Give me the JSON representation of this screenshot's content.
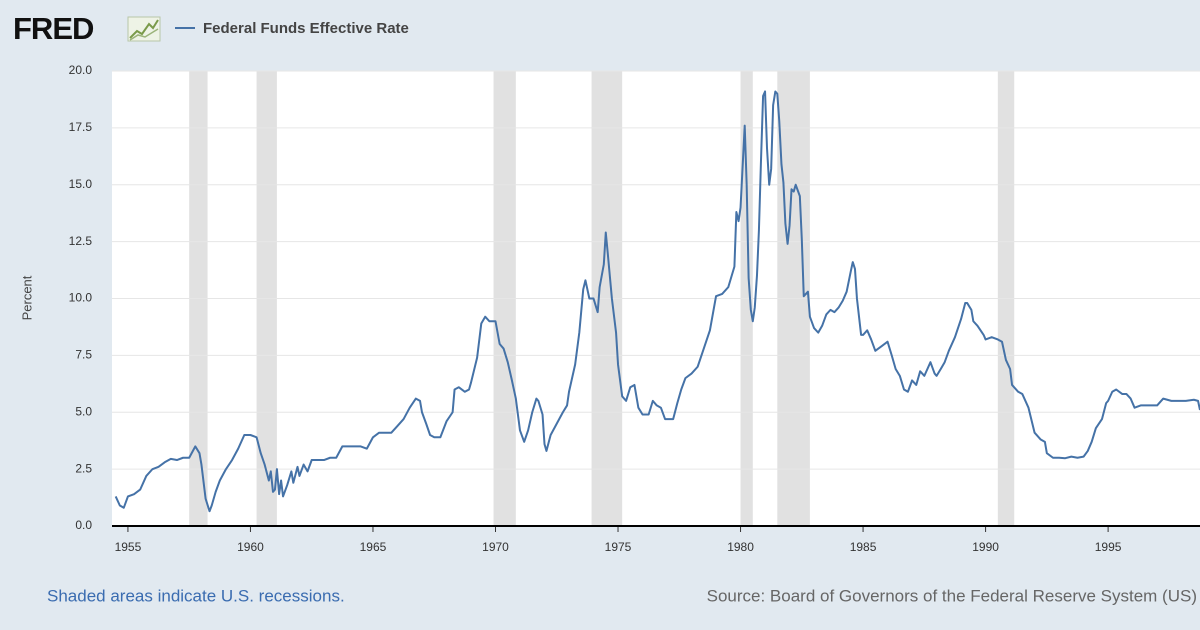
{
  "chart_data": {
    "type": "line",
    "logo": "FRED",
    "ylabel": "Percent",
    "note": "Shaded areas indicate U.S. recessions.",
    "source": "Source: Board of Governors of the Federal Reserve System (US)",
    "xlim": [
      1954.35,
      1998.75
    ],
    "xticks": [
      1955,
      1960,
      1965,
      1970,
      1975,
      1980,
      1985,
      1990,
      1995
    ],
    "ylim": [
      0,
      20
    ],
    "yticks": [
      {
        "value": 0,
        "label": "0.0"
      },
      2.5,
      {
        "value": 5,
        "label": "5.0"
      },
      7.5,
      {
        "value": 10,
        "label": "10.0"
      },
      12.5,
      {
        "value": 15,
        "label": "15.0"
      },
      17.5,
      {
        "value": 20,
        "label": "20.0"
      }
    ],
    "grid": true,
    "recession_color": "#e1e1e1",
    "recessions": [
      [
        1957.5,
        1958.25
      ],
      [
        1960.25,
        1961.08
      ],
      [
        1969.92,
        1970.83
      ],
      [
        1973.92,
        1975.17
      ],
      [
        1980.0,
        1980.5
      ],
      [
        1981.5,
        1982.83
      ],
      [
        1990.5,
        1991.17
      ]
    ],
    "x": [
      1954.5,
      1954.67,
      1954.83,
      1955.0,
      1955.25,
      1955.5,
      1955.75,
      1956.0,
      1956.25,
      1956.5,
      1956.75,
      1957.0,
      1957.25,
      1957.5,
      1957.75,
      1957.92,
      1958.0,
      1958.17,
      1958.33,
      1958.42,
      1958.58,
      1958.75,
      1959.0,
      1959.25,
      1959.5,
      1959.75,
      1960.0,
      1960.25,
      1960.42,
      1960.58,
      1960.75,
      1960.83,
      1960.92,
      1961.0,
      1961.08,
      1961.17,
      1961.25,
      1961.33,
      1961.5,
      1961.67,
      1961.75,
      1961.92,
      1962.0,
      1962.17,
      1962.33,
      1962.5,
      1962.75,
      1963.0,
      1963.25,
      1963.5,
      1963.75,
      1964.0,
      1964.25,
      1964.5,
      1964.75,
      1965.0,
      1965.25,
      1965.5,
      1965.75,
      1966.0,
      1966.25,
      1966.5,
      1966.75,
      1966.92,
      1967.0,
      1967.17,
      1967.33,
      1967.5,
      1967.75,
      1968.0,
      1968.25,
      1968.33,
      1968.5,
      1968.75,
      1968.92,
      1969.0,
      1969.25,
      1969.42,
      1969.58,
      1969.75,
      1970.0,
      1970.17,
      1970.33,
      1970.5,
      1970.67,
      1970.83,
      1971.0,
      1971.17,
      1971.33,
      1971.5,
      1971.67,
      1971.75,
      1971.92,
      1972.0,
      1972.08,
      1972.25,
      1972.5,
      1972.75,
      1972.92,
      1973.0,
      1973.25,
      1973.42,
      1973.58,
      1973.67,
      1973.83,
      1974.0,
      1974.17,
      1974.25,
      1974.42,
      1974.5,
      1974.58,
      1974.75,
      1974.92,
      1975.0,
      1975.17,
      1975.33,
      1975.5,
      1975.67,
      1975.83,
      1976.0,
      1976.25,
      1976.42,
      1976.58,
      1976.75,
      1976.92,
      1977.25,
      1977.42,
      1977.58,
      1977.75,
      1978.0,
      1978.25,
      1978.5,
      1978.75,
      1979.0,
      1979.25,
      1979.5,
      1979.75,
      1979.83,
      1979.92,
      1980.0,
      1980.17,
      1980.25,
      1980.33,
      1980.42,
      1980.5,
      1980.58,
      1980.67,
      1980.75,
      1980.83,
      1980.92,
      1981.0,
      1981.08,
      1981.17,
      1981.25,
      1981.33,
      1981.42,
      1981.5,
      1981.58,
      1981.67,
      1981.75,
      1981.83,
      1981.92,
      1982.0,
      1982.08,
      1982.17,
      1982.25,
      1982.42,
      1982.5,
      1982.58,
      1982.75,
      1982.83,
      1983.0,
      1983.17,
      1983.33,
      1983.5,
      1983.67,
      1983.83,
      1984.0,
      1984.17,
      1984.33,
      1984.5,
      1984.58,
      1984.67,
      1984.75,
      1984.92,
      1985.0,
      1985.17,
      1985.33,
      1985.5,
      1985.75,
      1986.0,
      1986.17,
      1986.33,
      1986.5,
      1986.67,
      1986.83,
      1987.0,
      1987.17,
      1987.33,
      1987.5,
      1987.75,
      1987.92,
      1988.0,
      1988.17,
      1988.33,
      1988.5,
      1988.75,
      1989.0,
      1989.17,
      1989.25,
      1989.42,
      1989.5,
      1989.67,
      1989.92,
      1990.0,
      1990.25,
      1990.5,
      1990.67,
      1990.83,
      1991.0,
      1991.08,
      1991.33,
      1991.5,
      1991.75,
      1992.0,
      1992.25,
      1992.42,
      1992.5,
      1992.75,
      1993.0,
      1993.25,
      1993.5,
      1993.75,
      1994.0,
      1994.17,
      1994.33,
      1994.5,
      1994.75,
      1994.92,
      1995.0,
      1995.17,
      1995.33,
      1995.58,
      1995.75,
      1995.92,
      1996.08,
      1996.33,
      1996.58,
      1996.83,
      1997.0,
      1997.25,
      1997.58,
      1997.92,
      1998.17,
      1998.5,
      1998.67,
      1998.75
    ],
    "series": [
      {
        "name": "Federal Funds Effective Rate",
        "color": "#4572a7",
        "values": [
          1.3,
          0.9,
          0.8,
          1.3,
          1.4,
          1.6,
          2.2,
          2.5,
          2.6,
          2.8,
          2.95,
          2.9,
          3.0,
          3.0,
          3.5,
          3.2,
          2.7,
          1.2,
          0.65,
          0.9,
          1.5,
          2.0,
          2.5,
          2.9,
          3.4,
          4.0,
          4.0,
          3.9,
          3.2,
          2.7,
          2.0,
          2.4,
          1.5,
          1.6,
          2.5,
          1.4,
          2.0,
          1.3,
          1.8,
          2.4,
          1.9,
          2.6,
          2.2,
          2.7,
          2.4,
          2.9,
          2.9,
          2.9,
          3.0,
          3.0,
          3.5,
          3.5,
          3.5,
          3.5,
          3.4,
          3.9,
          4.1,
          4.1,
          4.1,
          4.4,
          4.7,
          5.2,
          5.6,
          5.5,
          5.0,
          4.5,
          4.0,
          3.9,
          3.9,
          4.6,
          5.0,
          6.0,
          6.1,
          5.9,
          6.0,
          6.3,
          7.4,
          8.9,
          9.2,
          9.0,
          9.0,
          8.0,
          7.8,
          7.2,
          6.4,
          5.6,
          4.2,
          3.7,
          4.2,
          5.0,
          5.6,
          5.5,
          4.9,
          3.6,
          3.3,
          4.0,
          4.5,
          5.0,
          5.3,
          5.9,
          7.1,
          8.5,
          10.4,
          10.8,
          10.0,
          10.0,
          9.4,
          10.5,
          11.5,
          12.9,
          12.0,
          10.0,
          8.5,
          7.1,
          5.7,
          5.5,
          6.1,
          6.2,
          5.2,
          4.9,
          4.9,
          5.5,
          5.3,
          5.2,
          4.7,
          4.7,
          5.4,
          6.0,
          6.5,
          6.7,
          7.0,
          7.8,
          8.6,
          10.1,
          10.2,
          10.5,
          11.4,
          13.8,
          13.4,
          14.0,
          17.6,
          15.0,
          10.9,
          9.5,
          9.0,
          9.6,
          11.0,
          13.0,
          15.9,
          18.9,
          19.1,
          16.6,
          15.0,
          15.7,
          18.5,
          19.1,
          19.0,
          17.8,
          15.9,
          15.1,
          13.3,
          12.4,
          13.2,
          14.8,
          14.7,
          15.0,
          14.5,
          12.6,
          10.1,
          10.3,
          9.2,
          8.7,
          8.5,
          8.8,
          9.3,
          9.5,
          9.4,
          9.6,
          9.9,
          10.3,
          11.2,
          11.6,
          11.3,
          10.0,
          8.4,
          8.4,
          8.6,
          8.2,
          7.7,
          7.9,
          8.1,
          7.5,
          6.9,
          6.6,
          6.0,
          5.9,
          6.4,
          6.2,
          6.8,
          6.6,
          7.2,
          6.7,
          6.6,
          6.9,
          7.2,
          7.7,
          8.3,
          9.1,
          9.8,
          9.8,
          9.5,
          9.0,
          8.8,
          8.4,
          8.2,
          8.3,
          8.2,
          8.1,
          7.3,
          6.9,
          6.2,
          5.9,
          5.8,
          5.2,
          4.1,
          3.8,
          3.7,
          3.2,
          3.0,
          3.0,
          2.98,
          3.05,
          3.0,
          3.05,
          3.3,
          3.7,
          4.3,
          4.7,
          5.4,
          5.5,
          5.9,
          6.0,
          5.8,
          5.8,
          5.6,
          5.2,
          5.3,
          5.3,
          5.3,
          5.3,
          5.6,
          5.5,
          5.5,
          5.5,
          5.55,
          5.5,
          5.1
        ]
      }
    ]
  }
}
